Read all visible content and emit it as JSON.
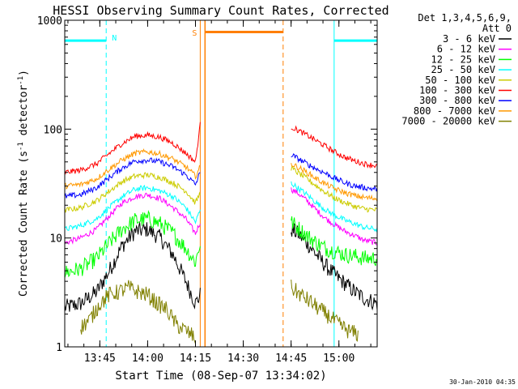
{
  "chart_data": {
    "type": "line",
    "title": "HESSI Observing Summary Count Rates, Corrected",
    "xlabel": "Start Time (08-Sep-07 13:34:02)",
    "ylabel_main": "Corrected Count Rate (s",
    "ylabel_sup1": "-1",
    "ylabel_mid": " detector",
    "ylabel_sup2": "-1",
    "ylabel_end": ")",
    "y_scale": "log",
    "ylim": [
      1,
      1000
    ],
    "xlim": [
      "13:34:02",
      "15:12:00"
    ],
    "x_ticks": [
      {
        "label": "13:45",
        "minutes": 11
      },
      {
        "label": "14:00",
        "minutes": 26
      },
      {
        "label": "14:15",
        "minutes": 41
      },
      {
        "label": "14:30",
        "minutes": 56
      },
      {
        "label": "14:45",
        "minutes": 71
      },
      {
        "label": "15:00",
        "minutes": 86
      }
    ],
    "y_ticks": [
      {
        "label": "1",
        "value": 1
      },
      {
        "label": "10",
        "value": 10
      },
      {
        "label": "100",
        "value": 100
      },
      {
        "label": "1000",
        "value": 1000
      }
    ],
    "grid": false,
    "legend_position": "right",
    "legend_header_1": "Det 1,3,4,5,6,9,",
    "legend_header_2": "Att 0",
    "series": [
      {
        "name": "3 - 6 keV",
        "color": "#000000",
        "times": [
          0,
          5,
          10,
          14,
          18,
          22,
          26,
          30,
          34,
          38,
          41,
          42.5
        ],
        "values": [
          2.3,
          2.5,
          3.2,
          5,
          8.5,
          11.5,
          12,
          10,
          7,
          4,
          2.5,
          3
        ],
        "times2": [
          71,
          73,
          76,
          79,
          82,
          85,
          88,
          91,
          94,
          98
        ],
        "values2": [
          12,
          11,
          9,
          7,
          5.5,
          4.5,
          3.8,
          3.2,
          2.8,
          2.5
        ]
      },
      {
        "name": "6 - 12 keV",
        "color": "#ff00ff",
        "times": [
          0,
          5,
          10,
          14,
          18,
          22,
          26,
          30,
          34,
          38,
          41,
          42.5
        ],
        "values": [
          9,
          10,
          12,
          16,
          21,
          24,
          25,
          23,
          19,
          15,
          11,
          14
        ],
        "times2": [
          71,
          73,
          76,
          79,
          82,
          85,
          88,
          91,
          94,
          98
        ],
        "values2": [
          28,
          26,
          22,
          18,
          15,
          13,
          11.5,
          10.5,
          9.5,
          9
        ]
      },
      {
        "name": "12 - 25 keV",
        "color": "#00ff00",
        "times": [
          0,
          5,
          10,
          14,
          18,
          22,
          26,
          30,
          34,
          38,
          41,
          42.5
        ],
        "values": [
          4.8,
          5.2,
          6.5,
          9,
          12,
          14.5,
          15,
          13.5,
          11,
          8,
          6,
          9
        ],
        "times2": [
          71,
          73,
          76,
          79,
          82,
          85,
          88,
          91,
          94,
          98
        ],
        "values2": [
          14,
          12.5,
          10.5,
          9,
          8,
          7.5,
          7,
          6.8,
          6.5,
          6.5
        ]
      },
      {
        "name": "25 - 50 keV",
        "color": "#00ffff",
        "times": [
          0,
          5,
          10,
          14,
          18,
          22,
          26,
          30,
          34,
          38,
          41,
          42.5
        ],
        "values": [
          12,
          13,
          15,
          19,
          24,
          28,
          29,
          27,
          24,
          19,
          14,
          18
        ],
        "times2": [
          71,
          73,
          76,
          79,
          82,
          85,
          88,
          91,
          94,
          98
        ],
        "values2": [
          32,
          29,
          25,
          21,
          18,
          16,
          14.5,
          13.5,
          12.5,
          12
        ]
      },
      {
        "name": "50 - 100 keV",
        "color": "#cccc00",
        "times": [
          0,
          5,
          10,
          14,
          18,
          22,
          26,
          30,
          34,
          38,
          41,
          42.5
        ],
        "values": [
          18,
          19,
          22,
          27,
          33,
          37,
          38,
          36,
          32,
          27,
          21,
          26
        ],
        "times2": [
          71,
          73,
          76,
          79,
          82,
          85,
          88,
          91,
          94,
          98
        ],
        "values2": [
          44,
          40,
          35,
          30,
          26,
          23,
          21,
          19.5,
          18.5,
          18
        ]
      },
      {
        "name": "100 - 300 keV",
        "color": "#ff0000",
        "times": [
          0,
          5,
          10,
          14,
          18,
          22,
          26,
          30,
          34,
          38,
          41,
          42.5
        ],
        "values": [
          40,
          42,
          48,
          60,
          74,
          86,
          88,
          84,
          74,
          60,
          50,
          110
        ],
        "times2": [
          71,
          73,
          76,
          79,
          82,
          85,
          88,
          91,
          94,
          98
        ],
        "values2": [
          105,
          98,
          88,
          78,
          69,
          61,
          55,
          51,
          48,
          46
        ]
      },
      {
        "name": "300 - 800 keV",
        "color": "#0000ff",
        "times": [
          0,
          5,
          10,
          14,
          18,
          22,
          26,
          30,
          34,
          38,
          41,
          42.5
        ],
        "values": [
          24,
          25,
          29,
          36,
          44,
          51,
          52,
          50,
          45,
          38,
          31,
          40
        ],
        "times2": [
          71,
          73,
          76,
          79,
          82,
          85,
          88,
          91,
          94,
          98
        ],
        "values2": [
          58,
          54,
          48,
          43,
          39,
          35,
          32,
          30,
          29,
          28
        ]
      },
      {
        "name": "800 - 7000 keV",
        "color": "#ff9900",
        "times": [
          0,
          5,
          10,
          14,
          18,
          22,
          26,
          30,
          34,
          38,
          41,
          42.5
        ],
        "values": [
          30,
          31,
          35,
          43,
          52,
          60,
          62,
          59,
          53,
          45,
          37,
          45
        ],
        "times2": [
          71,
          73,
          76,
          79,
          82,
          85,
          88,
          91,
          94,
          98
        ],
        "values2": [
          48,
          45,
          40,
          35,
          31,
          28,
          26,
          24.5,
          23.5,
          23
        ]
      },
      {
        "name": "7000 - 20000 keV",
        "color": "#808000",
        "times": [
          5,
          8,
          11,
          14,
          17,
          20,
          23,
          26,
          29,
          32,
          35,
          38,
          41
        ],
        "values": [
          1.5,
          1.8,
          2.5,
          3,
          3.2,
          3.5,
          3.2,
          3,
          2.5,
          2.2,
          1.6,
          1.4,
          1.2
        ],
        "times2": [
          71,
          74,
          77,
          80,
          83,
          86,
          89,
          92
        ],
        "values2": [
          3.5,
          3,
          2.6,
          2.2,
          1.9,
          1.6,
          1.4,
          1.3
        ]
      }
    ],
    "annotations": {
      "night_flag_label": "N",
      "saa_flag_label": "S",
      "night_bars": [
        {
          "start": 0,
          "end": 13,
          "value": 650
        },
        {
          "start": 84.5,
          "end": 98,
          "value": 650
        }
      ],
      "saa_bar": {
        "start": 44,
        "end": 68.5,
        "value": 780
      },
      "night_lines": [
        13,
        84.5,
        98
      ],
      "saa_lines": [
        42.5,
        44,
        68.5
      ],
      "night_color": "#00ffff",
      "saa_color": "#ff7f00"
    },
    "timestamp": "30-Jan-2010 04:35"
  }
}
